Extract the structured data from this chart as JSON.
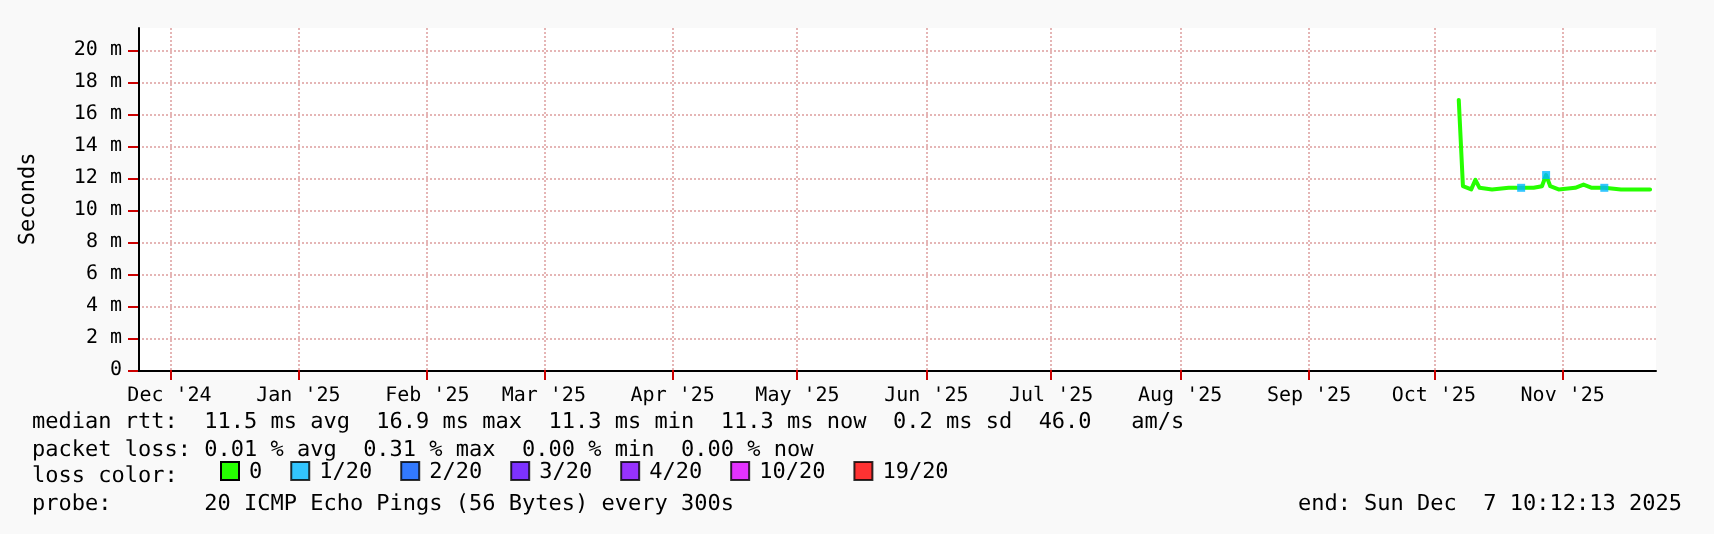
{
  "chart_data": {
    "type": "line",
    "ylabel": "Seconds",
    "legend_title": "loss color:",
    "annotations": [
      "median rtt:  11.5 ms avg  16.9 ms max  11.3 ms min  11.3 ms now  0.2 ms sd  46.0   am/s",
      "packet loss: 0.01 % avg  0.31 % max  0.00 % min  0.00 % now",
      "probe:       20 ICMP Echo Pings (56 Bytes) every 300s",
      "end: Sun Dec  7 10:12:13 2025"
    ],
    "xlim": [
      "2024-12-07T10:12",
      "2025-12-07T10:12"
    ],
    "xticks": [
      {
        "value": "2024-12-15",
        "label": "Dec '24"
      },
      {
        "value": "2025-01-15",
        "label": "Jan '25"
      },
      {
        "value": "2025-02-15",
        "label": "Feb '25"
      },
      {
        "value": "2025-03-15",
        "label": "Mar '25"
      },
      {
        "value": "2025-04-15",
        "label": "Apr '25"
      },
      {
        "value": "2025-05-15",
        "label": "May '25"
      },
      {
        "value": "2025-06-15",
        "label": "Jun '25"
      },
      {
        "value": "2025-07-15",
        "label": "Jul '25"
      },
      {
        "value": "2025-08-15",
        "label": "Aug '25"
      },
      {
        "value": "2025-09-15",
        "label": "Sep '25"
      },
      {
        "value": "2025-10-15",
        "label": "Oct '25"
      },
      {
        "value": "2025-11-15",
        "label": "Nov '25"
      }
    ],
    "ylim": [
      0,
      21.4
    ],
    "yticks": [
      0,
      {
        "value": 2,
        "label": "2 m"
      },
      {
        "value": 4,
        "label": "4 m"
      },
      {
        "value": 6,
        "label": "6 m"
      },
      {
        "value": 8,
        "label": "8 m"
      },
      {
        "value": 10,
        "label": "10 m"
      },
      {
        "value": 12,
        "label": "12 m"
      },
      {
        "value": 14,
        "label": "14 m"
      },
      {
        "value": 16,
        "label": "16 m"
      },
      {
        "value": 18,
        "label": "18 m"
      },
      {
        "value": 20,
        "label": "20 m"
      }
    ],
    "grid": true,
    "legend": "bottom left",
    "marker": "none",
    "series": [
      {
        "name": "0",
        "color": "#26ff00",
        "x": [
          "2025-10-21",
          "2025-10-22",
          "2025-10-24",
          "2025-10-25",
          "2025-10-26",
          "2025-10-29",
          "2025-11-02",
          "2025-11-05",
          "2025-11-08",
          "2025-11-10",
          "2025-11-11",
          "2025-11-12",
          "2025-11-14",
          "2025-11-18",
          "2025-11-20",
          "2025-11-22",
          "2025-11-25",
          "2025-11-29",
          "2025-12-02",
          "2025-12-06"
        ],
        "values": [
          16.9,
          11.5,
          11.3,
          11.9,
          11.4,
          11.3,
          11.4,
          11.4,
          11.4,
          11.5,
          12.2,
          11.5,
          11.3,
          11.4,
          11.6,
          11.4,
          11.4,
          11.3,
          11.3,
          11.3
        ]
      },
      {
        "name": "1/20",
        "color": "#00b8ff",
        "type": "scatter",
        "marker": "square",
        "x": [
          "2025-11-05",
          "2025-11-11",
          "2025-11-25"
        ],
        "values": [
          11.4,
          12.2,
          11.4
        ]
      },
      {
        "name": "2/20",
        "color": "#0059ff",
        "type": "scatter",
        "marker": "square"
      },
      {
        "name": "3/20",
        "color": "#5e00ff",
        "type": "scatter",
        "marker": "square"
      },
      {
        "name": "4/20",
        "color": "#7e00ff",
        "type": "scatter",
        "marker": "square"
      },
      {
        "name": "10/20",
        "color": "#dd00ff",
        "type": "scatter",
        "marker": "square"
      },
      {
        "name": "19/20",
        "color": "#ff0000",
        "type": "scatter",
        "marker": "square"
      }
    ]
  }
}
